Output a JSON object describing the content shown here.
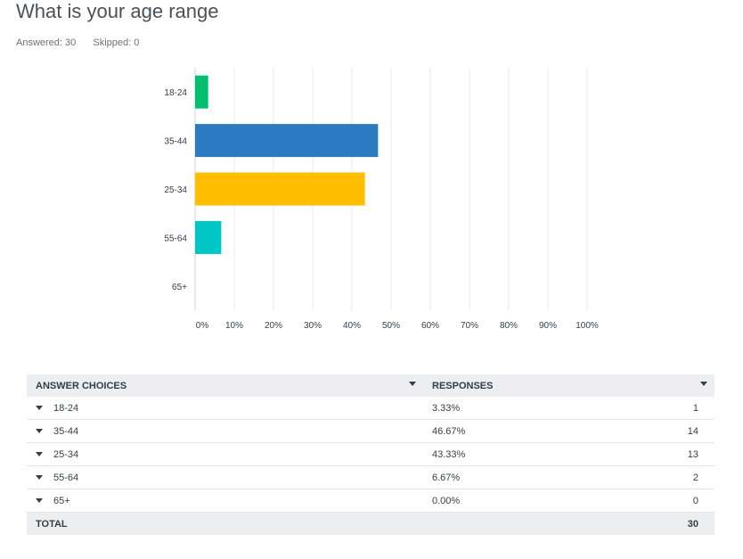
{
  "question": {
    "title": "What is your age range",
    "answered_label": "Answered:",
    "answered_count": "30",
    "skipped_label": "Skipped:",
    "skipped_count": "0"
  },
  "chart_data": {
    "type": "bar",
    "orientation": "horizontal",
    "categories": [
      "18-24",
      "35-44",
      "25-34",
      "55-64",
      "65+"
    ],
    "values": [
      3.33,
      46.67,
      43.33,
      6.67,
      0.0
    ],
    "colors": [
      "#00bf6f",
      "#2c7abf",
      "#ffbe00",
      "#00c6c6",
      "#a0a0a0"
    ],
    "xlim": [
      0,
      100
    ],
    "x_ticks": [
      "0%",
      "10%",
      "20%",
      "30%",
      "40%",
      "50%",
      "60%",
      "70%",
      "80%",
      "90%",
      "100%"
    ],
    "grid": true
  },
  "table": {
    "headers": {
      "choices": "ANSWER CHOICES",
      "responses": "RESPONSES"
    },
    "rows": [
      {
        "choice": "18-24",
        "percent": "3.33%",
        "count": "1"
      },
      {
        "choice": "35-44",
        "percent": "46.67%",
        "count": "14"
      },
      {
        "choice": "25-34",
        "percent": "43.33%",
        "count": "13"
      },
      {
        "choice": "55-64",
        "percent": "6.67%",
        "count": "2"
      },
      {
        "choice": "65+",
        "percent": "0.00%",
        "count": "0"
      }
    ],
    "total_label": "TOTAL",
    "total_count": "30"
  }
}
